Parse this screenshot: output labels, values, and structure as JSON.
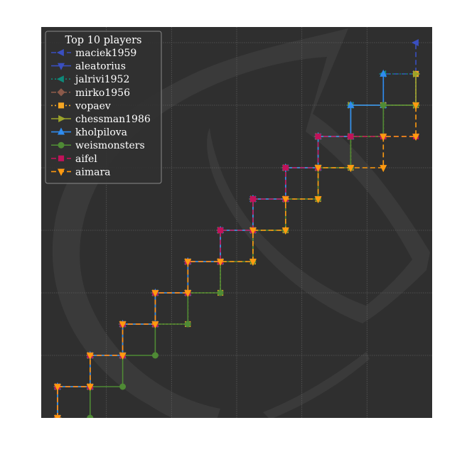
{
  "chart_data": {
    "type": "line",
    "title": "",
    "xlabel": "",
    "ylabel": "",
    "xlim": [
      0,
      12
    ],
    "ylim": [
      0,
      12.5
    ],
    "grid": true,
    "background_color": "#2f2f2f",
    "grid_color": "#5a5a5a",
    "legend": {
      "title": "Top 10 players",
      "placement": "top-left"
    },
    "series": [
      {
        "name": "maciek1959",
        "color": "#3a4fc0",
        "linestyle": "dashed",
        "marker": "triangle-left",
        "points": [
          [
            0.5,
            1
          ],
          [
            1.5,
            1
          ],
          [
            1.5,
            2
          ],
          [
            2.5,
            2
          ],
          [
            2.5,
            3
          ],
          [
            3.5,
            3
          ],
          [
            3.5,
            4
          ],
          [
            4.5,
            4
          ],
          [
            4.5,
            5
          ],
          [
            5.5,
            5
          ],
          [
            5.5,
            6
          ],
          [
            6.5,
            6
          ],
          [
            6.5,
            7
          ],
          [
            7.5,
            7
          ],
          [
            7.5,
            8
          ],
          [
            8.5,
            8
          ],
          [
            8.5,
            9
          ],
          [
            9.5,
            9
          ],
          [
            9.5,
            10
          ],
          [
            10.5,
            10
          ],
          [
            10.5,
            11
          ],
          [
            11.5,
            11
          ],
          [
            11.5,
            12
          ]
        ]
      },
      {
        "name": "aleatorius",
        "color": "#3a4fc0",
        "linestyle": "solid",
        "marker": "triangle-down",
        "points": [
          [
            0.5,
            0
          ],
          [
            0.5,
            1
          ],
          [
            1.5,
            1
          ],
          [
            1.5,
            2
          ],
          [
            2.5,
            2
          ],
          [
            2.5,
            3
          ],
          [
            3.5,
            3
          ],
          [
            3.5,
            4
          ],
          [
            4.5,
            4
          ],
          [
            4.5,
            5
          ],
          [
            5.5,
            5
          ],
          [
            5.5,
            6
          ],
          [
            6.5,
            6
          ],
          [
            6.5,
            7
          ],
          [
            7.5,
            7
          ],
          [
            7.5,
            8
          ],
          [
            8.5,
            8
          ],
          [
            8.5,
            9
          ],
          [
            9.5,
            9
          ],
          [
            9.5,
            10
          ],
          [
            10.5,
            10
          ],
          [
            11.5,
            10
          ],
          [
            11.5,
            11
          ]
        ]
      },
      {
        "name": "jalrivi1952",
        "color": "#0f8a7a",
        "linestyle": "dotted",
        "marker": "triangle-left",
        "points": [
          [
            0.5,
            0
          ],
          [
            0.5,
            1
          ],
          [
            1.5,
            1
          ],
          [
            1.5,
            2
          ],
          [
            2.5,
            2
          ],
          [
            2.5,
            3
          ],
          [
            3.5,
            3
          ],
          [
            3.5,
            4
          ],
          [
            4.5,
            4
          ],
          [
            4.5,
            5
          ],
          [
            5.5,
            5
          ],
          [
            5.5,
            6
          ],
          [
            6.5,
            6
          ],
          [
            6.5,
            7
          ],
          [
            7.5,
            7
          ],
          [
            7.5,
            8
          ],
          [
            8.5,
            8
          ],
          [
            8.5,
            9
          ],
          [
            9.5,
            9
          ],
          [
            9.5,
            10
          ],
          [
            10.5,
            10
          ],
          [
            10.5,
            11
          ],
          [
            11.5,
            11
          ]
        ]
      },
      {
        "name": "mirko1956",
        "color": "#8b5a4a",
        "linestyle": "dashdot",
        "marker": "diamond",
        "points": [
          [
            0.5,
            0
          ],
          [
            0.5,
            1
          ],
          [
            1.5,
            1
          ],
          [
            1.5,
            2
          ],
          [
            2.5,
            2
          ],
          [
            2.5,
            3
          ],
          [
            3.5,
            3
          ],
          [
            3.5,
            4
          ],
          [
            4.5,
            4
          ],
          [
            4.5,
            5
          ],
          [
            5.5,
            5
          ],
          [
            5.5,
            6
          ],
          [
            6.5,
            6
          ],
          [
            6.5,
            7
          ],
          [
            7.5,
            7
          ],
          [
            7.5,
            8
          ],
          [
            8.5,
            8
          ],
          [
            8.5,
            9
          ],
          [
            9.5,
            9
          ],
          [
            10.5,
            9
          ],
          [
            10.5,
            10
          ],
          [
            11.5,
            10
          ],
          [
            11.5,
            11
          ]
        ]
      },
      {
        "name": "vopaev",
        "color": "#f5a623",
        "linestyle": "dotted",
        "marker": "square",
        "points": [
          [
            0.5,
            0
          ],
          [
            0.5,
            1
          ],
          [
            1.5,
            1
          ],
          [
            1.5,
            2
          ],
          [
            2.5,
            2
          ],
          [
            2.5,
            3
          ],
          [
            3.5,
            3
          ],
          [
            4.5,
            3
          ],
          [
            4.5,
            4
          ],
          [
            5.5,
            4
          ],
          [
            5.5,
            5
          ],
          [
            6.5,
            5
          ],
          [
            6.5,
            6
          ],
          [
            7.5,
            6
          ],
          [
            7.5,
            7
          ],
          [
            8.5,
            7
          ],
          [
            8.5,
            8
          ],
          [
            9.5,
            8
          ],
          [
            9.5,
            9
          ],
          [
            10.5,
            9
          ],
          [
            10.5,
            10
          ],
          [
            11.5,
            10
          ],
          [
            11.5,
            11
          ]
        ]
      },
      {
        "name": "chessman1986",
        "color": "#9aa32a",
        "linestyle": "solid",
        "marker": "triangle-right",
        "points": [
          [
            0.5,
            0
          ],
          [
            0.5,
            1
          ],
          [
            1.5,
            1
          ],
          [
            1.5,
            2
          ],
          [
            2.5,
            2
          ],
          [
            2.5,
            3
          ],
          [
            3.5,
            3
          ],
          [
            3.5,
            4
          ],
          [
            4.5,
            4
          ],
          [
            4.5,
            5
          ],
          [
            5.5,
            5
          ],
          [
            5.5,
            6
          ],
          [
            6.5,
            6
          ],
          [
            6.5,
            7
          ],
          [
            7.5,
            7
          ],
          [
            7.5,
            8
          ],
          [
            8.5,
            8
          ],
          [
            8.5,
            9
          ],
          [
            9.5,
            9
          ],
          [
            9.5,
            10
          ],
          [
            11.5,
            10
          ],
          [
            11.5,
            11
          ]
        ]
      },
      {
        "name": "kholpilova",
        "color": "#2f8cf0",
        "linestyle": "solid",
        "marker": "triangle-up",
        "points": [
          [
            0.5,
            0
          ],
          [
            0.5,
            1
          ],
          [
            1.5,
            1
          ],
          [
            1.5,
            2
          ],
          [
            2.5,
            2
          ],
          [
            2.5,
            3
          ],
          [
            3.5,
            3
          ],
          [
            3.5,
            4
          ],
          [
            4.5,
            4
          ],
          [
            4.5,
            5
          ],
          [
            5.5,
            5
          ],
          [
            5.5,
            6
          ],
          [
            6.5,
            6
          ],
          [
            6.5,
            7
          ],
          [
            7.5,
            7
          ],
          [
            7.5,
            8
          ],
          [
            8.5,
            8
          ],
          [
            8.5,
            9
          ],
          [
            9.5,
            9
          ],
          [
            9.5,
            10
          ],
          [
            10.5,
            10
          ],
          [
            10.5,
            11
          ]
        ]
      },
      {
        "name": "weismonsters",
        "color": "#4f8a35",
        "linestyle": "solid",
        "marker": "circle",
        "points": [
          [
            1.5,
            0
          ],
          [
            1.5,
            1
          ],
          [
            2.5,
            1
          ],
          [
            2.5,
            2
          ],
          [
            3.5,
            2
          ],
          [
            3.5,
            3
          ],
          [
            4.5,
            3
          ],
          [
            4.5,
            4
          ],
          [
            5.5,
            4
          ],
          [
            5.5,
            5
          ],
          [
            6.5,
            5
          ],
          [
            6.5,
            6
          ],
          [
            7.5,
            6
          ],
          [
            7.5,
            7
          ],
          [
            8.5,
            7
          ],
          [
            8.5,
            8
          ],
          [
            9.5,
            8
          ],
          [
            9.5,
            9
          ],
          [
            10.5,
            9
          ],
          [
            10.5,
            10
          ],
          [
            11.5,
            10
          ]
        ]
      },
      {
        "name": "aifel",
        "color": "#c0135a",
        "linestyle": "dashed",
        "marker": "square",
        "points": [
          [
            0.5,
            0
          ],
          [
            0.5,
            1
          ],
          [
            1.5,
            1
          ],
          [
            1.5,
            2
          ],
          [
            2.5,
            2
          ],
          [
            2.5,
            3
          ],
          [
            3.5,
            3
          ],
          [
            3.5,
            4
          ],
          [
            4.5,
            4
          ],
          [
            4.5,
            5
          ],
          [
            5.5,
            5
          ],
          [
            5.5,
            6
          ],
          [
            6.5,
            6
          ],
          [
            6.5,
            7
          ],
          [
            7.5,
            7
          ],
          [
            7.5,
            8
          ],
          [
            8.5,
            8
          ],
          [
            8.5,
            9
          ],
          [
            9.5,
            9
          ],
          [
            10.5,
            9
          ],
          [
            11.5,
            9
          ]
        ]
      },
      {
        "name": "aimara",
        "color": "#ff9a10",
        "linestyle": "dashed",
        "marker": "triangle-down",
        "points": [
          [
            0.5,
            0
          ],
          [
            0.5,
            1
          ],
          [
            1.5,
            1
          ],
          [
            1.5,
            2
          ],
          [
            2.5,
            2
          ],
          [
            2.5,
            3
          ],
          [
            3.5,
            3
          ],
          [
            3.5,
            4
          ],
          [
            4.5,
            4
          ],
          [
            4.5,
            5
          ],
          [
            5.5,
            5
          ],
          [
            6.5,
            5
          ],
          [
            6.5,
            6
          ],
          [
            7.5,
            6
          ],
          [
            7.5,
            7
          ],
          [
            8.5,
            7
          ],
          [
            8.5,
            8
          ],
          [
            9.5,
            8
          ],
          [
            10.5,
            8
          ],
          [
            10.5,
            9
          ],
          [
            11.5,
            9
          ],
          [
            11.5,
            10
          ]
        ]
      }
    ]
  }
}
